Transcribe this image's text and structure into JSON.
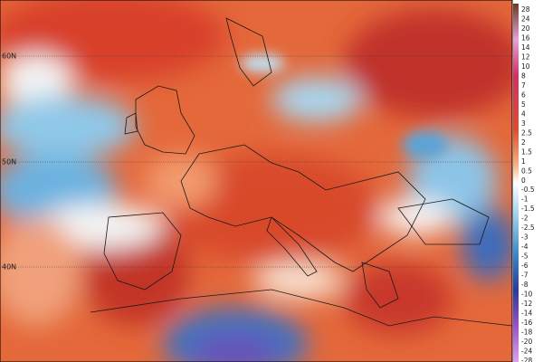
{
  "map": {
    "lat_labels": [
      "60N",
      "50N",
      "40N"
    ],
    "colorbar_labels": [
      "28",
      "24",
      "20",
      "16",
      "14",
      "12",
      "10",
      "8",
      "7",
      "6",
      "5",
      "4",
      "3",
      "2.5",
      "2",
      "1.5",
      "1",
      "0.5",
      "0",
      "-0.5",
      "-1",
      "-1.5",
      "-2",
      "-2.5",
      "-3",
      "-4",
      "-5",
      "-6",
      "-7",
      "-8",
      "-10",
      "-12",
      "-14",
      "-16",
      "-18",
      "-20",
      "-24",
      "-28"
    ]
  }
}
